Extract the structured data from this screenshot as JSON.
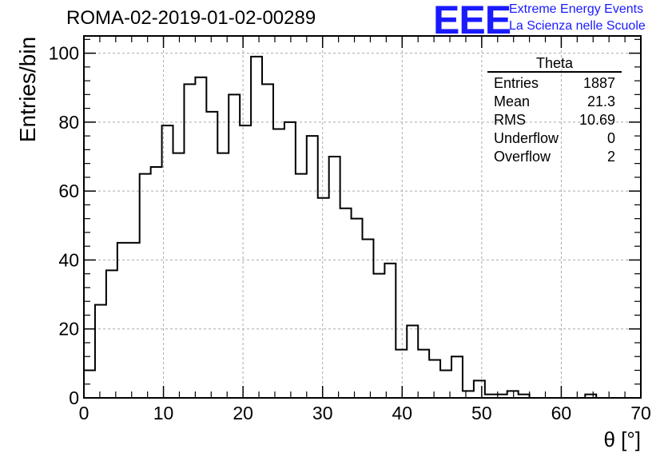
{
  "header": {
    "title": "ROMA-02-2019-01-02-00289"
  },
  "logo": {
    "mark": "EEE",
    "line1": "Extreme Energy Events",
    "line2": "La Scienza nelle Scuole",
    "color": "#1a1aff"
  },
  "stats": {
    "title": "Theta",
    "rows": [
      {
        "label": "Entries",
        "value": "1887"
      },
      {
        "label": "Mean",
        "value": "21.3"
      },
      {
        "label": "RMS",
        "value": "10.69"
      },
      {
        "label": "Underflow",
        "value": "0"
      },
      {
        "label": "Overflow",
        "value": "2"
      }
    ]
  },
  "chart_data": {
    "type": "histogram",
    "xlabel": "θ [°]",
    "ylabel": "Entries/bin",
    "xlim": [
      0,
      70
    ],
    "ylim": [
      0,
      105
    ],
    "grid": true,
    "bin_width": 1.4,
    "x_ticks": [
      0,
      10,
      20,
      30,
      40,
      50,
      60,
      70
    ],
    "y_ticks": [
      0,
      20,
      40,
      60,
      80,
      100
    ],
    "values": [
      8,
      27,
      37,
      45,
      45,
      65,
      67,
      79,
      71,
      91,
      93,
      83,
      71,
      88,
      79,
      99,
      91,
      78,
      80,
      65,
      76,
      58,
      70,
      55,
      52,
      46,
      36,
      39,
      14,
      21,
      14,
      11,
      8,
      12,
      2,
      5,
      1,
      1,
      2,
      1,
      0,
      0,
      0,
      0,
      0,
      1,
      0,
      0,
      0,
      0
    ]
  }
}
